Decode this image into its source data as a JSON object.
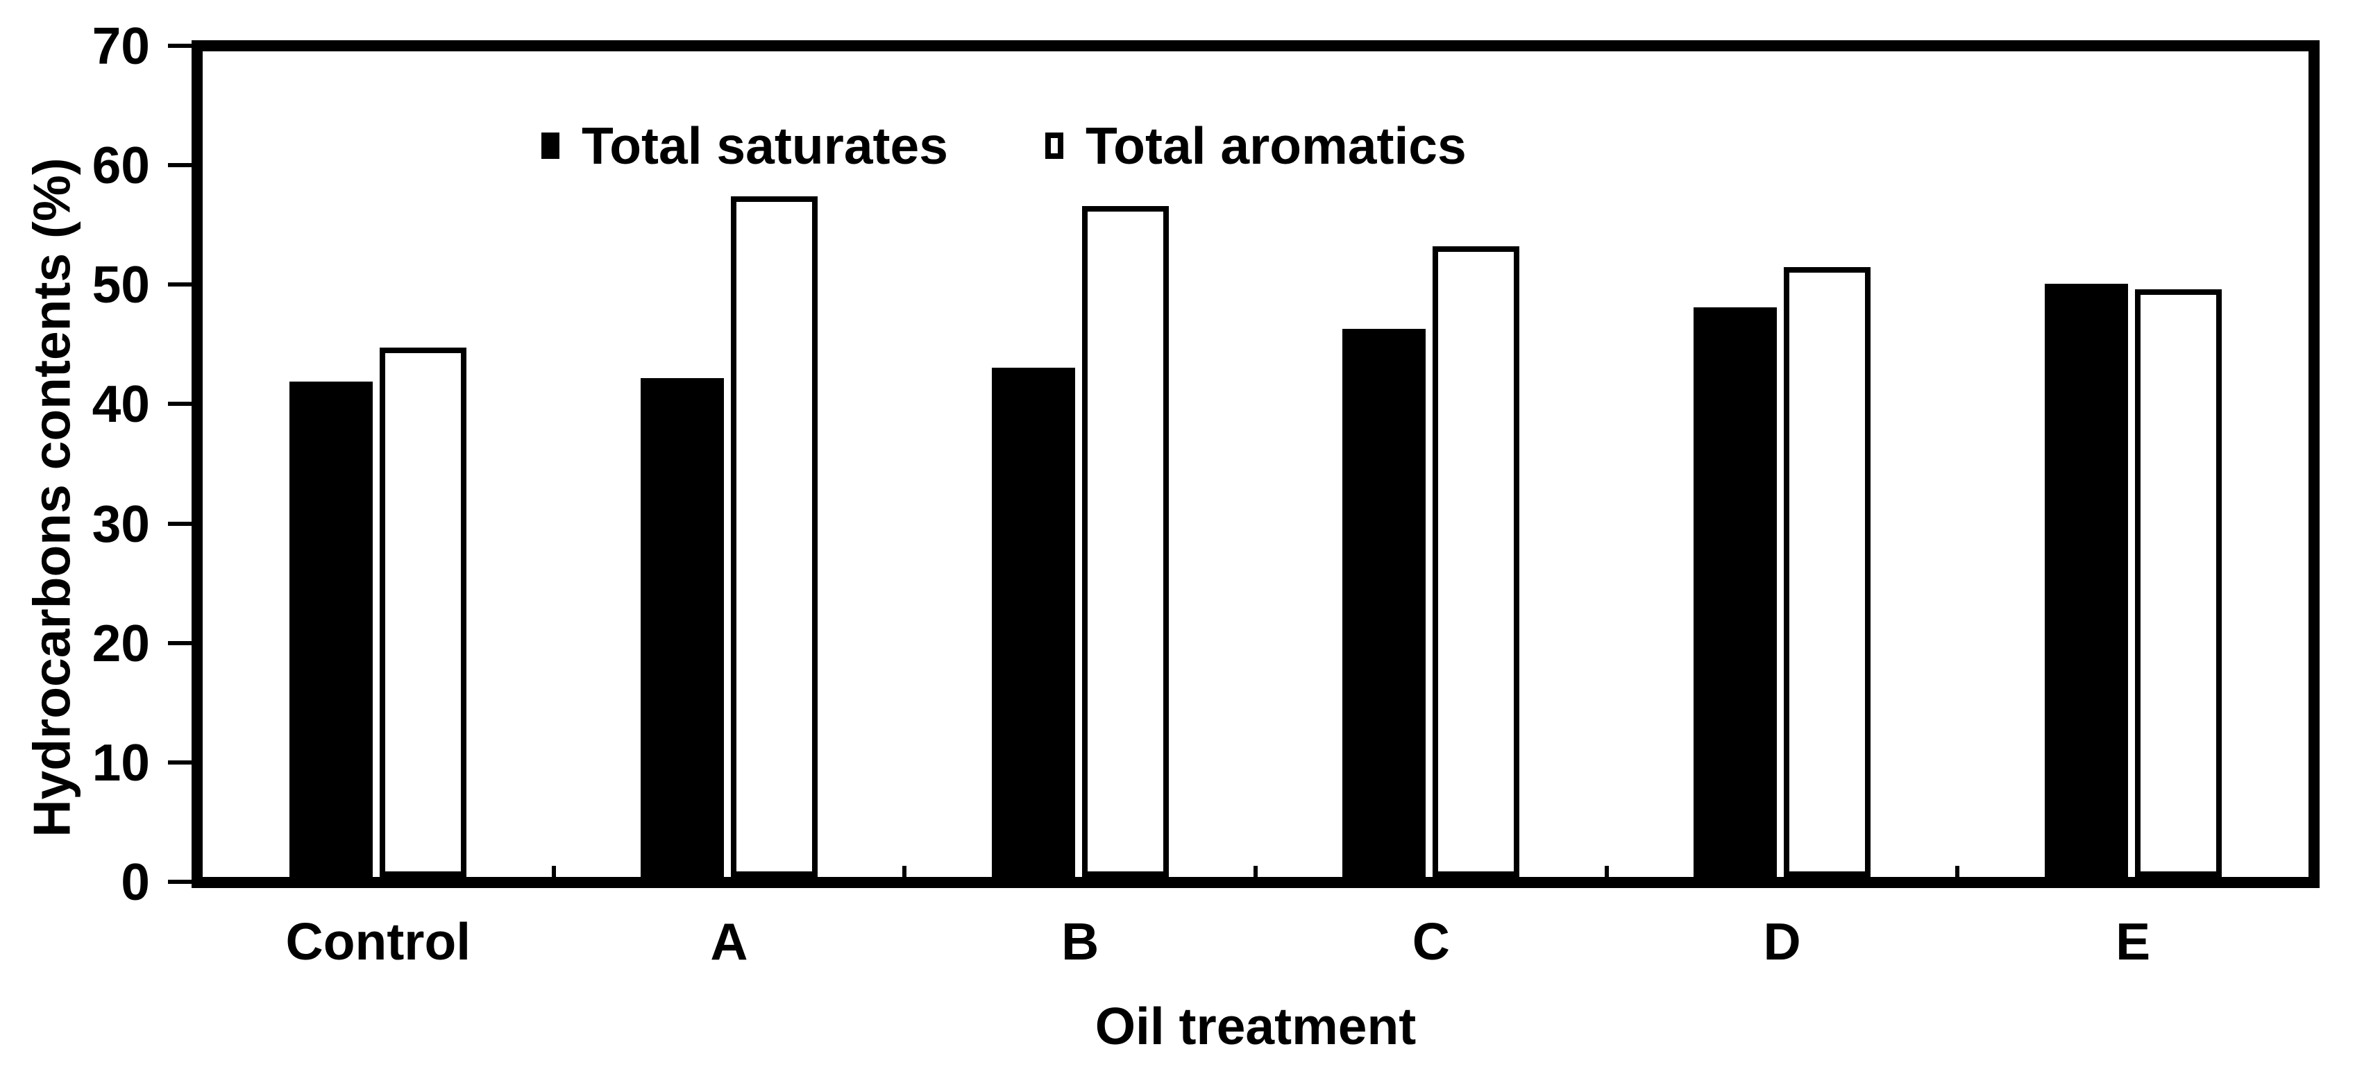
{
  "chart_data": {
    "type": "bar",
    "title": "",
    "categories": [
      "Control",
      "A",
      "B",
      "C",
      "D",
      "E"
    ],
    "series": [
      {
        "name": "Total saturates",
        "marker": "filled-black-square",
        "values": [
          42.0,
          42.3,
          43.2,
          46.5,
          48.3,
          50.3
        ]
      },
      {
        "name": "Total aromatics",
        "marker": "open-white-square",
        "values": [
          44.9,
          57.7,
          56.9,
          53.5,
          51.7,
          49.8
        ]
      }
    ],
    "xlabel": "Oil treatment",
    "ylabel": "Hydrocarbons contents (%)",
    "ylim": [
      0,
      70
    ],
    "yticks": [
      0,
      10,
      20,
      30,
      40,
      50,
      60,
      70
    ],
    "grid": false,
    "legend_position": "top-left-inside-plot",
    "colors": {
      "saturates_fill": "#000000",
      "aromatics_fill": "#ffffff",
      "axis": "#000000",
      "background": "#ffffff"
    }
  }
}
